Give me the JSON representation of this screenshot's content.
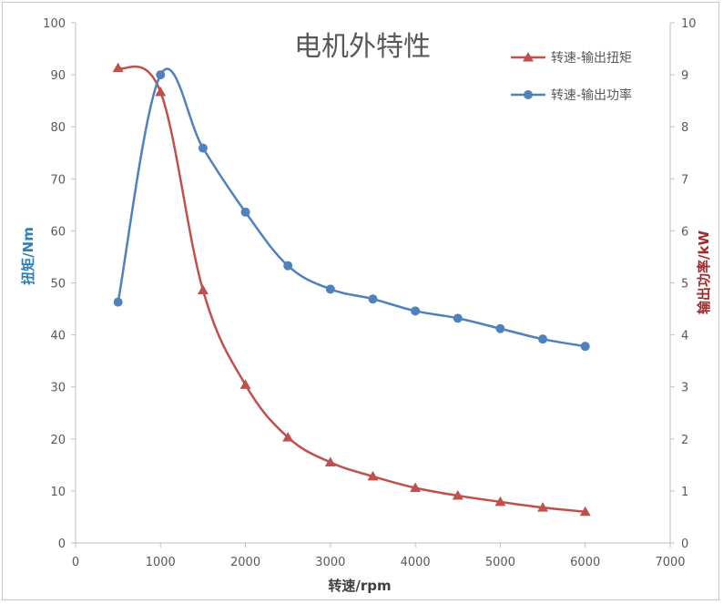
{
  "chart_data": {
    "type": "line",
    "title": "电机外特性",
    "xlabel": "转速/rpm",
    "ylabel_left": "扭矩/Nm",
    "ylabel_right": "输出功率/kW",
    "xlim": [
      0,
      7000
    ],
    "ylim_left": [
      0,
      100
    ],
    "ylim_right": [
      0,
      10
    ],
    "x_ticks": [
      "0",
      "1000",
      "2000",
      "3000",
      "4000",
      "5000",
      "6000",
      "7000"
    ],
    "y_left_ticks": [
      "0",
      "10",
      "20",
      "30",
      "40",
      "50",
      "60",
      "70",
      "80",
      "90",
      "100"
    ],
    "y_right_ticks": [
      "0",
      "1",
      "2",
      "3",
      "4",
      "5",
      "6",
      "7",
      "8",
      "9",
      "10"
    ],
    "grid": false,
    "legend_position": "top-right",
    "series": [
      {
        "name": "转速-输出扭矩",
        "axis": "left",
        "color": "#c0504d",
        "marker": "triangle",
        "x": [
          500,
          1000,
          1500,
          2000,
          2500,
          3000,
          3500,
          4000,
          4500,
          5000,
          5500,
          6000
        ],
        "values": [
          91.3,
          86.7,
          48.6,
          30.4,
          20.3,
          15.5,
          12.8,
          10.6,
          9.1,
          7.9,
          6.8,
          6.0
        ]
      },
      {
        "name": "转速-输出功率",
        "axis": "right",
        "color": "#4f81bd",
        "marker": "circle",
        "x": [
          500,
          1000,
          1500,
          2000,
          2500,
          3000,
          3500,
          4000,
          4500,
          5000,
          5500,
          6000
        ],
        "values": [
          4.63,
          9.0,
          7.59,
          6.36,
          5.33,
          4.88,
          4.69,
          4.46,
          4.32,
          4.12,
          3.92,
          3.78
        ]
      }
    ]
  }
}
